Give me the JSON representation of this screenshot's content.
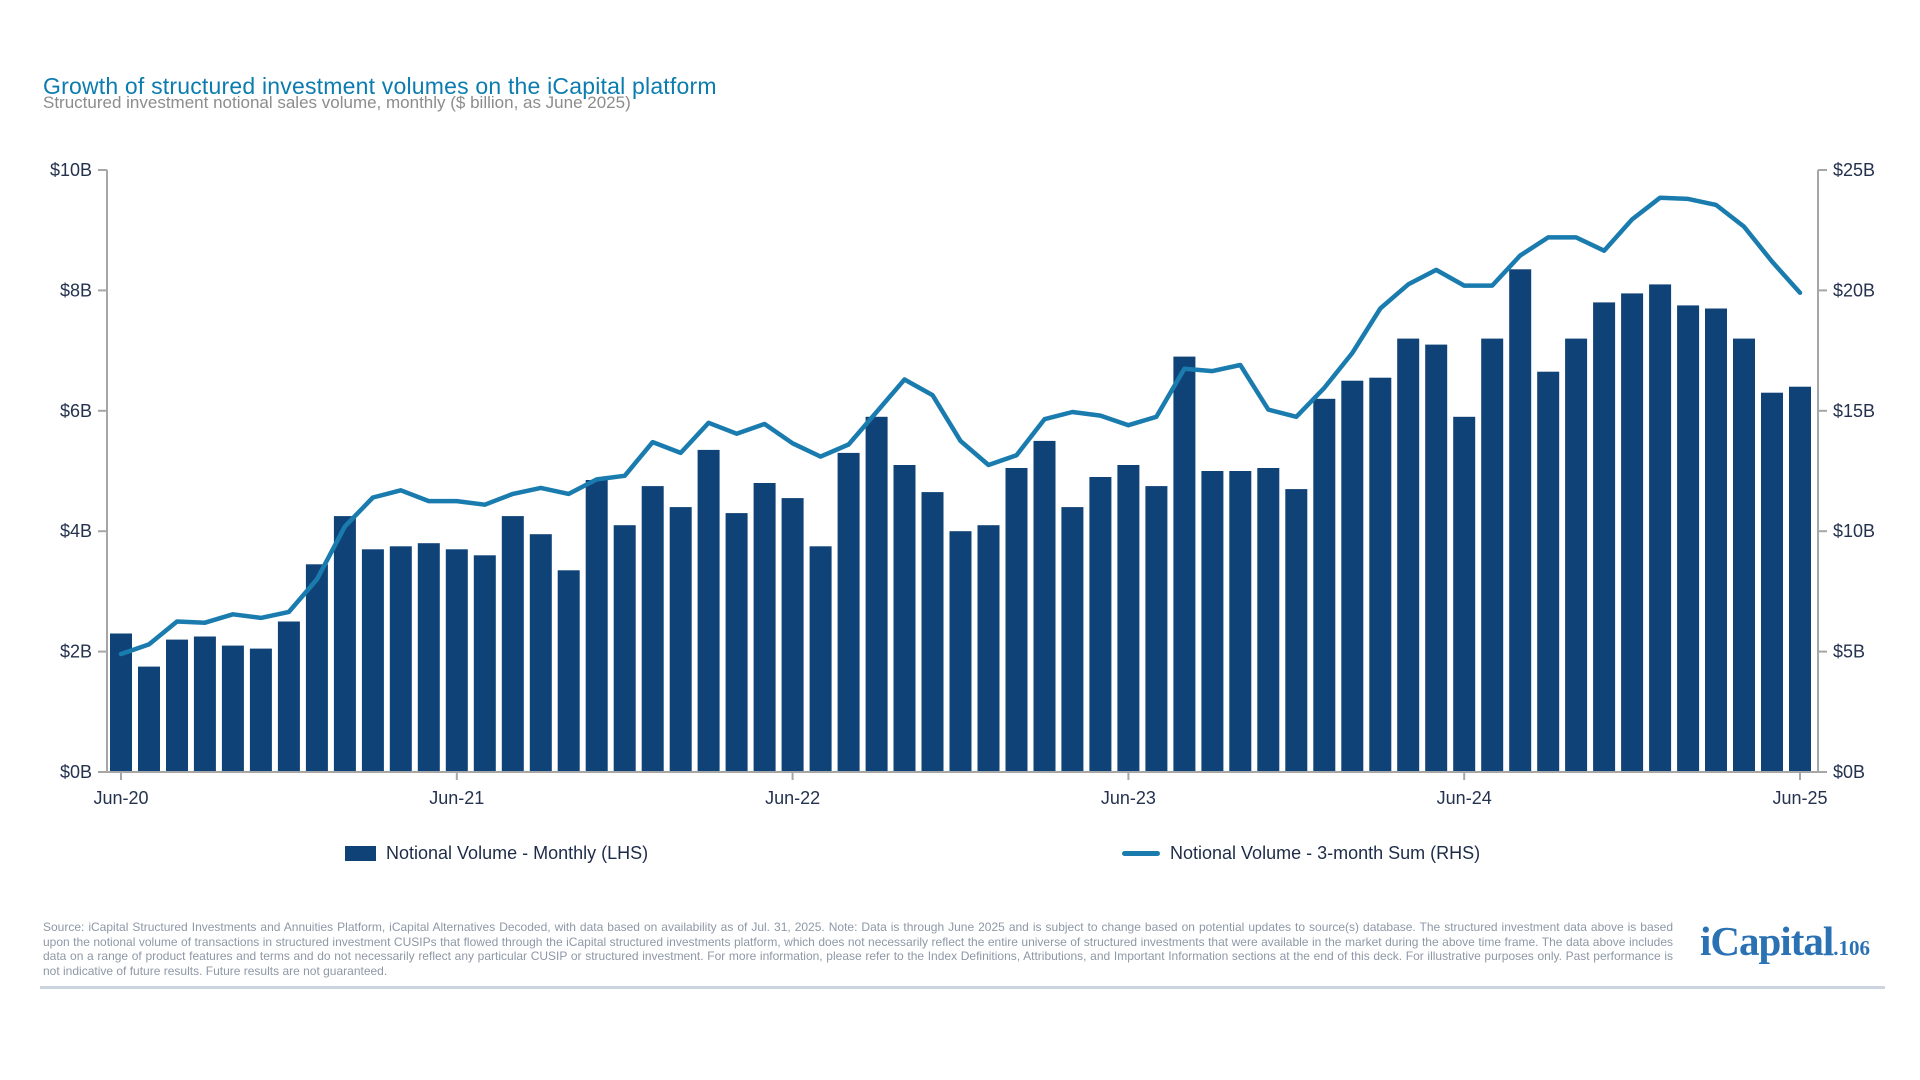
{
  "header": {
    "title": "Growth of structured investment volumes on the iCapital platform",
    "subtitle": "Structured investment notional sales volume, monthly ($ billion, as June 2025)"
  },
  "chart_data": {
    "type": "combo-bar-line",
    "title": "Growth of structured investment volumes on the iCapital platform",
    "subtitle": "Structured investment notional sales volume, monthly ($ billion, as June 2025)",
    "categories": [
      "Jun-20",
      "Jul-20",
      "Aug-20",
      "Sep-20",
      "Oct-20",
      "Nov-20",
      "Dec-20",
      "Jan-21",
      "Feb-21",
      "Mar-21",
      "Apr-21",
      "May-21",
      "Jun-21",
      "Jul-21",
      "Aug-21",
      "Sep-21",
      "Oct-21",
      "Nov-21",
      "Dec-21",
      "Jan-22",
      "Feb-22",
      "Mar-22",
      "Apr-22",
      "May-22",
      "Jun-22",
      "Jul-22",
      "Aug-22",
      "Sep-22",
      "Oct-22",
      "Nov-22",
      "Dec-22",
      "Jan-23",
      "Feb-23",
      "Mar-23",
      "Apr-23",
      "May-23",
      "Jun-23",
      "Jul-23",
      "Aug-23",
      "Sep-23",
      "Oct-23",
      "Nov-23",
      "Dec-23",
      "Jan-24",
      "Feb-24",
      "Mar-24",
      "Apr-24",
      "May-24",
      "Jun-24",
      "Jul-24",
      "Aug-24",
      "Sep-24",
      "Oct-24",
      "Nov-24",
      "Dec-24",
      "Jan-25",
      "Feb-25",
      "Mar-25",
      "Apr-25",
      "May-25",
      "Jun-25"
    ],
    "series": [
      {
        "name": "Notional Volume - Monthly (LHS)",
        "type": "bar",
        "axis": "left",
        "values": [
          2.3,
          1.75,
          2.2,
          2.25,
          2.1,
          2.05,
          2.5,
          3.45,
          4.25,
          3.7,
          3.75,
          3.8,
          3.7,
          3.6,
          4.25,
          3.95,
          3.35,
          4.85,
          4.1,
          4.75,
          4.4,
          5.35,
          4.3,
          4.8,
          4.55,
          3.75,
          5.3,
          5.9,
          5.1,
          4.65,
          4.0,
          4.1,
          5.05,
          5.5,
          4.4,
          4.9,
          5.1,
          4.75,
          6.9,
          5.0,
          5.0,
          5.05,
          4.7,
          6.2,
          6.5,
          6.55,
          7.2,
          7.1,
          5.9,
          7.2,
          8.35,
          6.65,
          7.2,
          7.8,
          7.95,
          8.1,
          7.75,
          7.7,
          7.2,
          6.3,
          6.4
        ]
      },
      {
        "name": "Notional Volume - 3-month Sum (RHS)",
        "type": "line",
        "axis": "right",
        "values": [
          4.9,
          5.3,
          6.25,
          6.2,
          6.55,
          6.4,
          6.65,
          8.0,
          10.2,
          11.4,
          11.7,
          11.25,
          11.25,
          11.1,
          11.55,
          11.8,
          11.55,
          12.15,
          12.3,
          13.7,
          13.25,
          14.5,
          14.05,
          14.45,
          13.65,
          13.1,
          13.6,
          14.95,
          16.3,
          15.65,
          13.75,
          12.75,
          13.15,
          14.65,
          14.95,
          14.8,
          14.4,
          14.75,
          16.75,
          16.65,
          16.9,
          15.05,
          14.75,
          15.95,
          17.4,
          19.25,
          20.25,
          20.85,
          20.2,
          20.2,
          21.45,
          22.2,
          22.2,
          21.65,
          22.95,
          23.85,
          23.8,
          23.55,
          22.65,
          21.2,
          19.9
        ]
      }
    ],
    "left_axis": {
      "ticks": [
        0,
        2,
        4,
        6,
        8,
        10
      ],
      "labels": [
        "$0B",
        "$2B",
        "$4B",
        "$6B",
        "$8B",
        "$10B"
      ],
      "range": [
        0,
        10
      ]
    },
    "right_axis": {
      "ticks": [
        0,
        5,
        10,
        15,
        20,
        25
      ],
      "labels": [
        "$0B",
        "$5B",
        "$10B",
        "$15B",
        "$20B",
        "$25B"
      ],
      "range": [
        0,
        25
      ]
    },
    "x_ticks": [
      {
        "label": "Jun-20",
        "index": 0
      },
      {
        "label": "Jun-21",
        "index": 12
      },
      {
        "label": "Jun-22",
        "index": 24
      },
      {
        "label": "Jun-23",
        "index": 36
      },
      {
        "label": "Jun-24",
        "index": 48
      },
      {
        "label": "Jun-25",
        "index": 60
      }
    ],
    "grid": false,
    "legend_position": "bottom"
  },
  "legend": {
    "items": [
      {
        "label": "Notional Volume - Monthly (LHS)",
        "swatch": "rect"
      },
      {
        "label": "Notional Volume - 3-month Sum (RHS)",
        "swatch": "line"
      }
    ]
  },
  "footer": {
    "source_note": "Source: iCapital Structured Investments and Annuities Platform, iCapital Alternatives Decoded, with data based on availability as of Jul. 31, 2025. Note: Data is through June 2025 and is subject to change based on potential updates to source(s) database. The structured investment data above is based upon the notional volume of transactions in structured investment CUSIPs that flowed through the iCapital structured investments platform, which does not necessarily reflect the entire universe of structured investments that were available in the market during the above time frame. The data above includes data on a range of product features and terms and do not necessarily reflect any particular CUSIP or structured investment. For more information, please refer to the Index Definitions, Attributions, and Important Information sections at the end of this deck. For illustrative purposes only. Past performance is not indicative of future results. Future results are not guaranteed."
  },
  "branding": {
    "logo_text": "iCapital",
    "page_number": ".106"
  },
  "colors": {
    "bar": "#0f4377",
    "line": "#1a7cae",
    "title": "#0c7cb0",
    "subtitle": "#8c8c8c",
    "axis_label": "#24324e",
    "axis_line": "#a6a6a6",
    "legend_text": "#1e2c49",
    "footer_text": "#8d98a6",
    "logo": "#2a72b4",
    "divider": "#ccd5df"
  }
}
